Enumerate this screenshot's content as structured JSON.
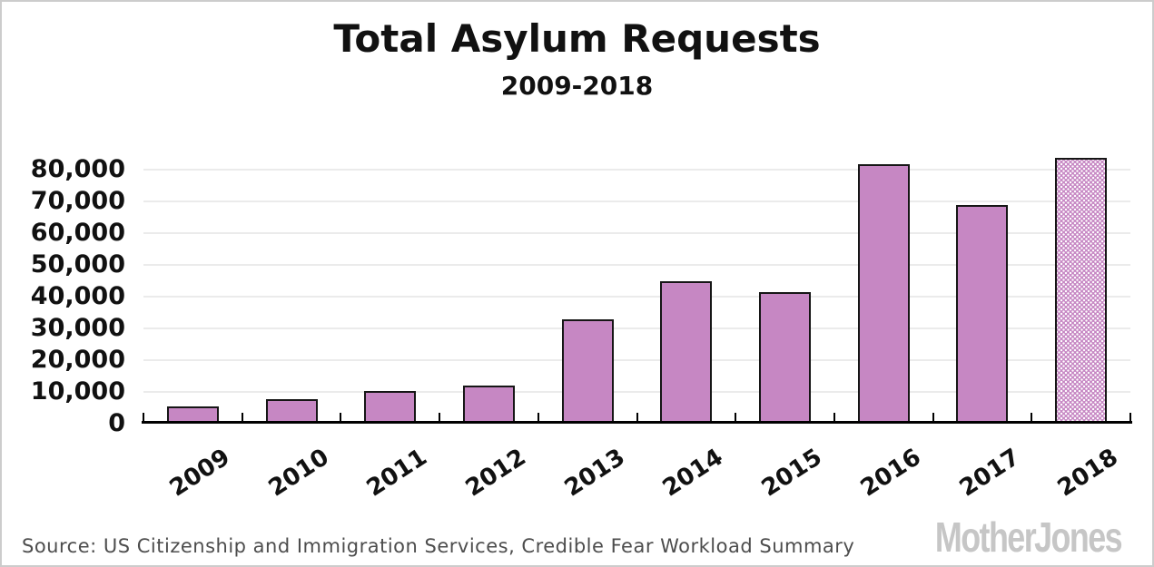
{
  "title": "Total Asylum Requests",
  "subtitle": "2009-2018",
  "source_line": "Source: US Citizenship and Immigration Services, Credible Fear Workload Summary",
  "branding": "Mother Jones",
  "colors": {
    "bar_fill": "#c687c3",
    "bar_border": "#161616",
    "gridline": "#ebebeb",
    "axis": "#000000",
    "source_text": "#4d4d4d",
    "logo_gray": "#c6c6c6",
    "canvas_border": "#cccccc"
  },
  "chart_data": {
    "type": "bar",
    "title": "Total Asylum Requests",
    "subtitle": "2009-2018",
    "categories": [
      "2009",
      "2010",
      "2011",
      "2012",
      "2013",
      "2014",
      "2015",
      "2016",
      "2017",
      "2018"
    ],
    "values": [
      5400,
      7600,
      10400,
      11900,
      33000,
      45000,
      41500,
      81700,
      69000,
      83700
    ],
    "xlabel": "",
    "ylabel": "",
    "ylim": [
      0,
      90000
    ],
    "yticks": [
      0,
      10000,
      20000,
      30000,
      40000,
      50000,
      60000,
      70000,
      80000
    ],
    "ytick_labels": [
      "0",
      "10,000",
      "20,000",
      "30,000",
      "40,000",
      "50,000",
      "60,000",
      "70,000",
      "80,000"
    ],
    "grid": true,
    "legend": false,
    "patterned_category": "2018",
    "pattern_style": "white-dot-screen"
  }
}
